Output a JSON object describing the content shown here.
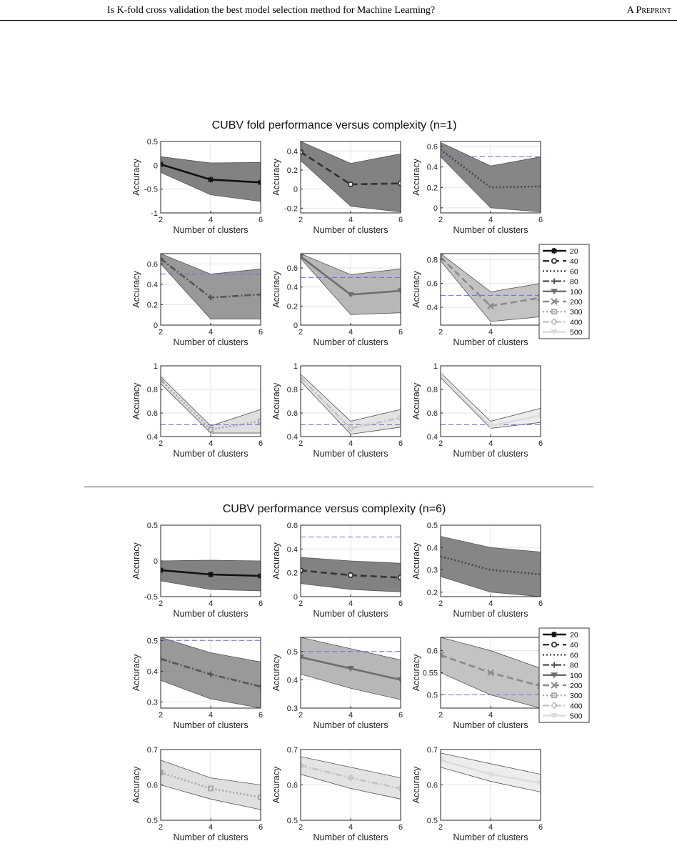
{
  "header": {
    "title": "Is K-fold cross validation the best model selection method for Machine Learning?",
    "tag": "A Preprint"
  },
  "chart_data": [
    {
      "type": "line",
      "title": "CUBV fold performance versus complexity (n=1)",
      "xlabel": "Number of clusters",
      "ylabel": "Accuracy",
      "x": [
        2,
        4,
        6
      ],
      "legend": [
        "20",
        "40",
        "60",
        "80",
        "100",
        "200",
        "300",
        "400",
        "500"
      ],
      "panels": [
        {
          "name": "20",
          "ylim": [
            -1,
            0.5
          ],
          "yticks": [
            -1,
            -0.5,
            0,
            0.5
          ],
          "values": [
            0.02,
            -0.3,
            -0.36
          ],
          "upper": [
            0.18,
            0.05,
            0.06
          ],
          "lower": [
            -0.15,
            -0.62,
            -0.76
          ],
          "threshold": null
        },
        {
          "name": "40",
          "ylim": [
            -0.25,
            0.5
          ],
          "yticks": [
            -0.2,
            0,
            0.2,
            0.4
          ],
          "values": [
            0.39,
            0.05,
            0.06
          ],
          "upper": [
            0.5,
            0.27,
            0.37
          ],
          "lower": [
            0.3,
            -0.18,
            -0.24
          ],
          "threshold": null
        },
        {
          "name": "60",
          "ylim": [
            -0.05,
            0.65
          ],
          "yticks": [
            0,
            0.2,
            0.4,
            0.6
          ],
          "values": [
            0.57,
            0.2,
            0.21
          ],
          "upper": [
            0.64,
            0.41,
            0.5
          ],
          "lower": [
            0.5,
            0.0,
            -0.04
          ],
          "threshold": 0.5
        },
        {
          "name": "80",
          "ylim": [
            0,
            0.7
          ],
          "yticks": [
            0,
            0.2,
            0.4,
            0.6
          ],
          "values": [
            0.65,
            0.27,
            0.3
          ],
          "upper": [
            0.7,
            0.5,
            0.55
          ],
          "lower": [
            0.6,
            0.06,
            0.06
          ],
          "threshold": 0.5
        },
        {
          "name": "100",
          "ylim": [
            0,
            0.75
          ],
          "yticks": [
            0,
            0.2,
            0.4,
            0.6
          ],
          "values": [
            0.72,
            0.32,
            0.36
          ],
          "upper": [
            0.75,
            0.53,
            0.59
          ],
          "lower": [
            0.7,
            0.11,
            0.13
          ],
          "threshold": 0.5
        },
        {
          "name": "200",
          "ylim": [
            0.25,
            0.85
          ],
          "yticks": [
            0.4,
            0.6,
            0.8
          ],
          "values": [
            0.82,
            0.41,
            0.48
          ],
          "upper": [
            0.85,
            0.53,
            0.6
          ],
          "lower": [
            0.79,
            0.28,
            0.32
          ],
          "threshold": 0.5
        },
        {
          "name": "300",
          "ylim": [
            0.4,
            1
          ],
          "yticks": [
            0.4,
            0.6,
            0.8,
            1
          ],
          "values": [
            0.88,
            0.46,
            0.53
          ],
          "upper": [
            0.91,
            0.49,
            0.63
          ],
          "lower": [
            0.85,
            0.43,
            0.43
          ],
          "threshold": 0.5
        },
        {
          "name": "400",
          "ylim": [
            0.4,
            1
          ],
          "yticks": [
            0.4,
            0.6,
            0.8,
            1
          ],
          "values": [
            0.9,
            0.47,
            0.56
          ],
          "upper": [
            0.93,
            0.53,
            0.63
          ],
          "lower": [
            0.87,
            0.42,
            0.48
          ],
          "threshold": 0.5
        },
        {
          "name": "500",
          "ylim": [
            0.4,
            1
          ],
          "yticks": [
            0.4,
            0.6,
            0.8,
            1
          ],
          "values": [
            0.92,
            0.49,
            0.58
          ],
          "upper": [
            0.94,
            0.53,
            0.64
          ],
          "lower": [
            0.9,
            0.47,
            0.52
          ],
          "threshold": 0.5
        }
      ]
    },
    {
      "type": "line",
      "title": "CUBV performance versus complexity (n=6)",
      "xlabel": "Number of clusters",
      "ylabel": "Accuracy",
      "x": [
        2,
        4,
        6
      ],
      "legend": [
        "20",
        "40",
        "60",
        "80",
        "100",
        "200",
        "300",
        "400",
        "500"
      ],
      "panels": [
        {
          "name": "20",
          "ylim": [
            -0.5,
            0.5
          ],
          "yticks": [
            -0.5,
            0,
            0.5
          ],
          "values": [
            -0.13,
            -0.19,
            -0.21
          ],
          "upper": [
            0.0,
            0.01,
            0.0
          ],
          "lower": [
            -0.28,
            -0.4,
            -0.42
          ],
          "threshold": null
        },
        {
          "name": "40",
          "ylim": [
            0,
            0.6
          ],
          "yticks": [
            0,
            0.2,
            0.4,
            0.6
          ],
          "values": [
            0.22,
            0.18,
            0.16
          ],
          "upper": [
            0.33,
            0.3,
            0.28
          ],
          "lower": [
            0.11,
            0.06,
            0.04
          ],
          "threshold": 0.5
        },
        {
          "name": "60",
          "ylim": [
            0.18,
            0.5
          ],
          "yticks": [
            0.2,
            0.3,
            0.4,
            0.5
          ],
          "values": [
            0.36,
            0.3,
            0.28
          ],
          "upper": [
            0.45,
            0.4,
            0.38
          ],
          "lower": [
            0.27,
            0.2,
            0.18
          ],
          "threshold": null
        },
        {
          "name": "80",
          "ylim": [
            0.28,
            0.51
          ],
          "yticks": [
            0.3,
            0.4,
            0.5
          ],
          "values": [
            0.44,
            0.39,
            0.35
          ],
          "upper": [
            0.51,
            0.46,
            0.43
          ],
          "lower": [
            0.37,
            0.31,
            0.28
          ],
          "threshold": 0.5
        },
        {
          "name": "100",
          "ylim": [
            0.3,
            0.55
          ],
          "yticks": [
            0.3,
            0.4,
            0.5
          ],
          "values": [
            0.48,
            0.44,
            0.4
          ],
          "upper": [
            0.55,
            0.51,
            0.47
          ],
          "lower": [
            0.42,
            0.37,
            0.33
          ],
          "threshold": 0.5
        },
        {
          "name": "200",
          "ylim": [
            0.47,
            0.63
          ],
          "yticks": [
            0.5,
            0.55,
            0.6
          ],
          "values": [
            0.59,
            0.55,
            0.52
          ],
          "upper": [
            0.63,
            0.6,
            0.56
          ],
          "lower": [
            0.55,
            0.5,
            0.47
          ],
          "threshold": 0.5
        },
        {
          "name": "300",
          "ylim": [
            0.5,
            0.7
          ],
          "yticks": [
            0.5,
            0.6,
            0.7
          ],
          "values": [
            0.635,
            0.59,
            0.565
          ],
          "upper": [
            0.67,
            0.62,
            0.6
          ],
          "lower": [
            0.6,
            0.56,
            0.53
          ],
          "threshold": null
        },
        {
          "name": "400",
          "ylim": [
            0.5,
            0.7
          ],
          "yticks": [
            0.5,
            0.6,
            0.7
          ],
          "values": [
            0.655,
            0.62,
            0.59
          ],
          "upper": [
            0.68,
            0.65,
            0.62
          ],
          "lower": [
            0.63,
            0.59,
            0.56
          ],
          "threshold": null
        },
        {
          "name": "500",
          "ylim": [
            0.5,
            0.7
          ],
          "yticks": [
            0.5,
            0.6,
            0.7
          ],
          "values": [
            0.67,
            0.63,
            0.605
          ],
          "upper": [
            0.69,
            0.66,
            0.63
          ],
          "lower": [
            0.65,
            0.61,
            0.58
          ],
          "threshold": null
        }
      ]
    }
  ],
  "style": {
    "series_colors": [
      "#111111",
      "#333333",
      "#444444",
      "#555555",
      "#6e6e6e",
      "#8a8a8a",
      "#a6a6a6",
      "#c3c3c3",
      "#dcdcdc"
    ],
    "band_colors": [
      "#7b7b7b",
      "#7b7b7b",
      "#808080",
      "#939393",
      "#b3b3b3",
      "#c0c0c0",
      "#dddddd",
      "#e2e2e2",
      "#ececec"
    ],
    "threshold_color": "#6a6ae8"
  }
}
